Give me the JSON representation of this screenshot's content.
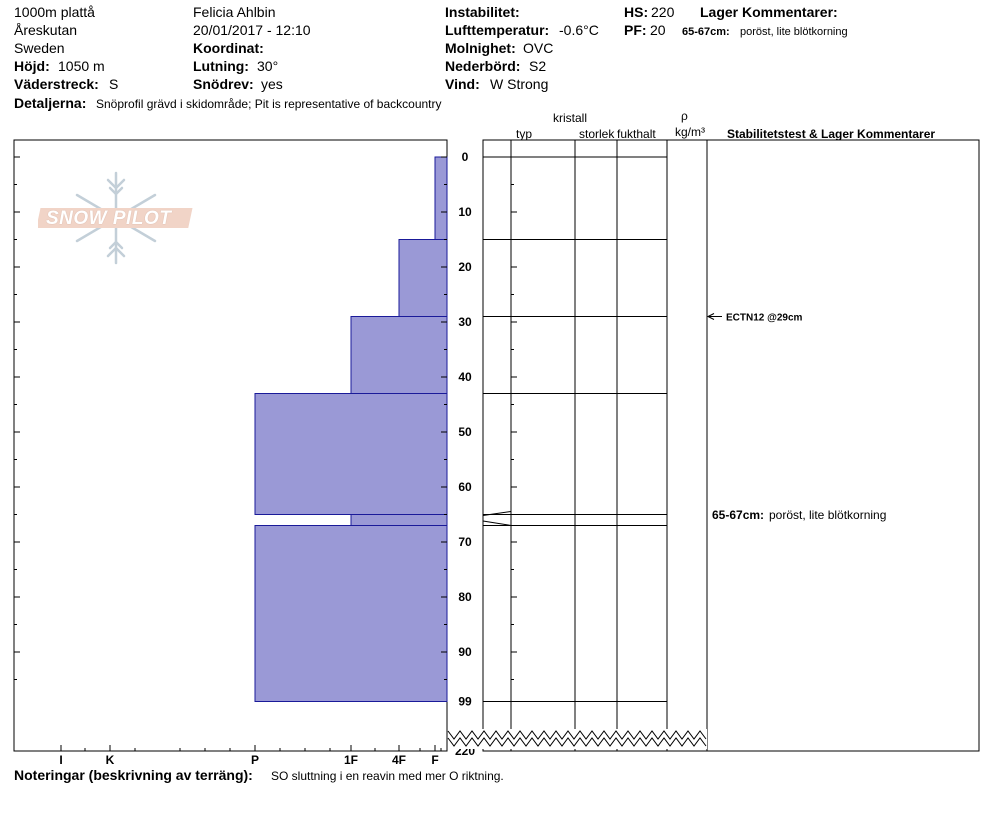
{
  "header": {
    "location": "1000m plattå",
    "area": "Åreskutan",
    "country": "Sweden",
    "height_label": "Höjd:",
    "height_value": "1050 m",
    "aspect_label": "Väderstreck:",
    "aspect_value": "S",
    "details_label": "Detaljerna:",
    "details_value": "Snöprofil grävd i skidområde;  Pit is representative of backcountry",
    "observer": "Felicia Ahlbin",
    "datetime": "20/01/2017 - 12:10",
    "coord_label": "Koordinat:",
    "slope_label": "Lutning:",
    "slope_value": "30°",
    "drift_label": "Snödrev:",
    "drift_value": "yes",
    "instability_label": "Instabilitet:",
    "airtemp_label": "Lufttemperatur:",
    "airtemp_value": "-0.6°C",
    "sky_label": "Molnighet:",
    "sky_value": "OVC",
    "precip_label": "Nederbörd:",
    "precip_value": "S2",
    "wind_label": "Vind:",
    "wind_value": "W Strong",
    "hs_label": "HS:",
    "hs_value": "220",
    "pf_label": "PF:",
    "pf_value": "20",
    "layer_comments_label": "Lager Kommentarer:",
    "layer_comment_depth": "65-67cm:",
    "layer_comment_text": "poröst, lite blötkorning"
  },
  "columns": {
    "crystal": "kristall",
    "type": "typ",
    "size": "storlek",
    "moisture": "fukthalt",
    "rho": "ρ",
    "density_unit": "kg/m³",
    "stability": "Stabilitetstest & Lager Kommentarer"
  },
  "footer": {
    "notes_label": "Noteringar (beskrivning av terräng):",
    "notes_value": "SO sluttning i en reavin med mer O riktning."
  },
  "logo_text": "SNOW PILOT",
  "colors": {
    "layer_fill": "#9a99d6",
    "layer_stroke": "#1a1a99"
  },
  "chart_data": {
    "type": "bar",
    "y_axis": {
      "direction": "down",
      "ticks": [
        0,
        10,
        20,
        30,
        40,
        50,
        60,
        70,
        80,
        90,
        99,
        220
      ],
      "axis_break_after": 99
    },
    "x_axis": {
      "direction": "right-to-left",
      "categories": [
        "I",
        "K",
        "P",
        "1F",
        "4F",
        "F"
      ]
    },
    "hardness_profile": [
      {
        "top": 0,
        "bottom": 15,
        "hardness": "F"
      },
      {
        "top": 15,
        "bottom": 29,
        "hardness": "4F"
      },
      {
        "top": 29,
        "bottom": 43,
        "hardness": "1F"
      },
      {
        "top": 43,
        "bottom": 65,
        "hardness": "P"
      },
      {
        "top": 65,
        "bottom": 67,
        "hardness": "1F"
      },
      {
        "top": 67,
        "bottom": 99,
        "hardness": "P"
      }
    ],
    "layer_boundaries": [
      0,
      15,
      29,
      43,
      65,
      67,
      99
    ],
    "stability_tests": [
      {
        "depth": 29,
        "label": "ECTN12 @29cm"
      }
    ],
    "layer_comments": [
      {
        "depth": 66,
        "label": "65-67cm:",
        "text": "poröst, lite blötkorning"
      }
    ]
  }
}
